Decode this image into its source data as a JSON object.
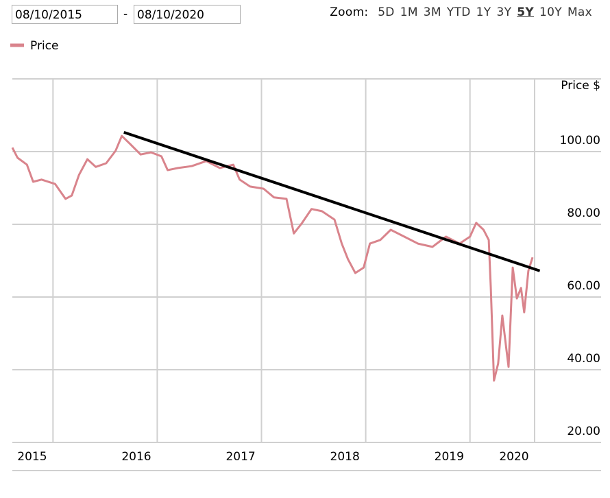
{
  "ui": {
    "date_from": "08/10/2015",
    "separator": "-",
    "date_to": "08/10/2020",
    "zoom_label": "Zoom:",
    "zoom_options": [
      "5D",
      "1M",
      "3M",
      "YTD",
      "1Y",
      "3Y",
      "5Y",
      "10Y",
      "Max"
    ],
    "zoom_selected": 6
  },
  "chart_data": {
    "type": "line",
    "y_label": "Price $",
    "legend": "top-left",
    "grid": true,
    "xlim": [
      2015.61,
      2020.62
    ],
    "xticks": [
      2015,
      2016,
      2017,
      2018,
      2019,
      2020
    ],
    "ylim": [
      20,
      120
    ],
    "yticks": [
      {
        "value": 20,
        "label": "20.00"
      },
      {
        "value": 40,
        "label": "40.00"
      },
      {
        "value": 60,
        "label": "60.00"
      },
      {
        "value": 80,
        "label": "80.00"
      },
      {
        "value": 100,
        "label": "100.00"
      }
    ],
    "x": [
      2015.61,
      2015.66,
      2015.75,
      2015.81,
      2015.89,
      2016.02,
      2016.12,
      2016.18,
      2016.25,
      2016.33,
      2016.41,
      2016.51,
      2016.6,
      2016.66,
      2016.74,
      2016.84,
      2016.94,
      2017.04,
      2017.1,
      2017.2,
      2017.33,
      2017.47,
      2017.6,
      2017.73,
      2017.79,
      2017.89,
      2018.02,
      2018.12,
      2018.24,
      2018.31,
      2018.39,
      2018.48,
      2018.58,
      2018.7,
      2018.77,
      2018.83,
      2018.9,
      2018.98,
      2019.04,
      2019.14,
      2019.24,
      2019.37,
      2019.5,
      2019.64,
      2019.77,
      2019.9,
      2020.0,
      2020.06,
      2020.13,
      2020.18,
      2020.2,
      2020.23,
      2020.27,
      2020.31,
      2020.35,
      2020.37,
      2020.41,
      2020.45,
      2020.49,
      2020.52,
      2020.56,
      2020.6
    ],
    "series": [
      {
        "name": "Price",
        "color": "#d9848c",
        "values": [
          101.1,
          98.3,
          96.4,
          91.7,
          92.3,
          91.1,
          87,
          87.9,
          93.6,
          97.9,
          95.8,
          96.8,
          100.2,
          104.3,
          102.1,
          99.2,
          99.8,
          98.7,
          94.9,
          95.5,
          96,
          97.4,
          95.5,
          96.4,
          92.3,
          90.4,
          89.8,
          87.4,
          87,
          77.5,
          80.4,
          84.2,
          83.6,
          81.3,
          74.7,
          70.4,
          66.6,
          68.1,
          74.7,
          75.7,
          78.5,
          76.6,
          74.7,
          73.8,
          76.6,
          74.7,
          76.6,
          80.4,
          78.5,
          75.7,
          62.5,
          37,
          41.7,
          54.9,
          45.5,
          40.8,
          68.1,
          59.6,
          62.5,
          55.8,
          67.2,
          70.9
        ]
      }
    ],
    "trendline": {
      "color": "#000000",
      "x": [
        2016.68,
        2020.67
      ],
      "values": [
        105.3,
        67.2
      ]
    }
  }
}
